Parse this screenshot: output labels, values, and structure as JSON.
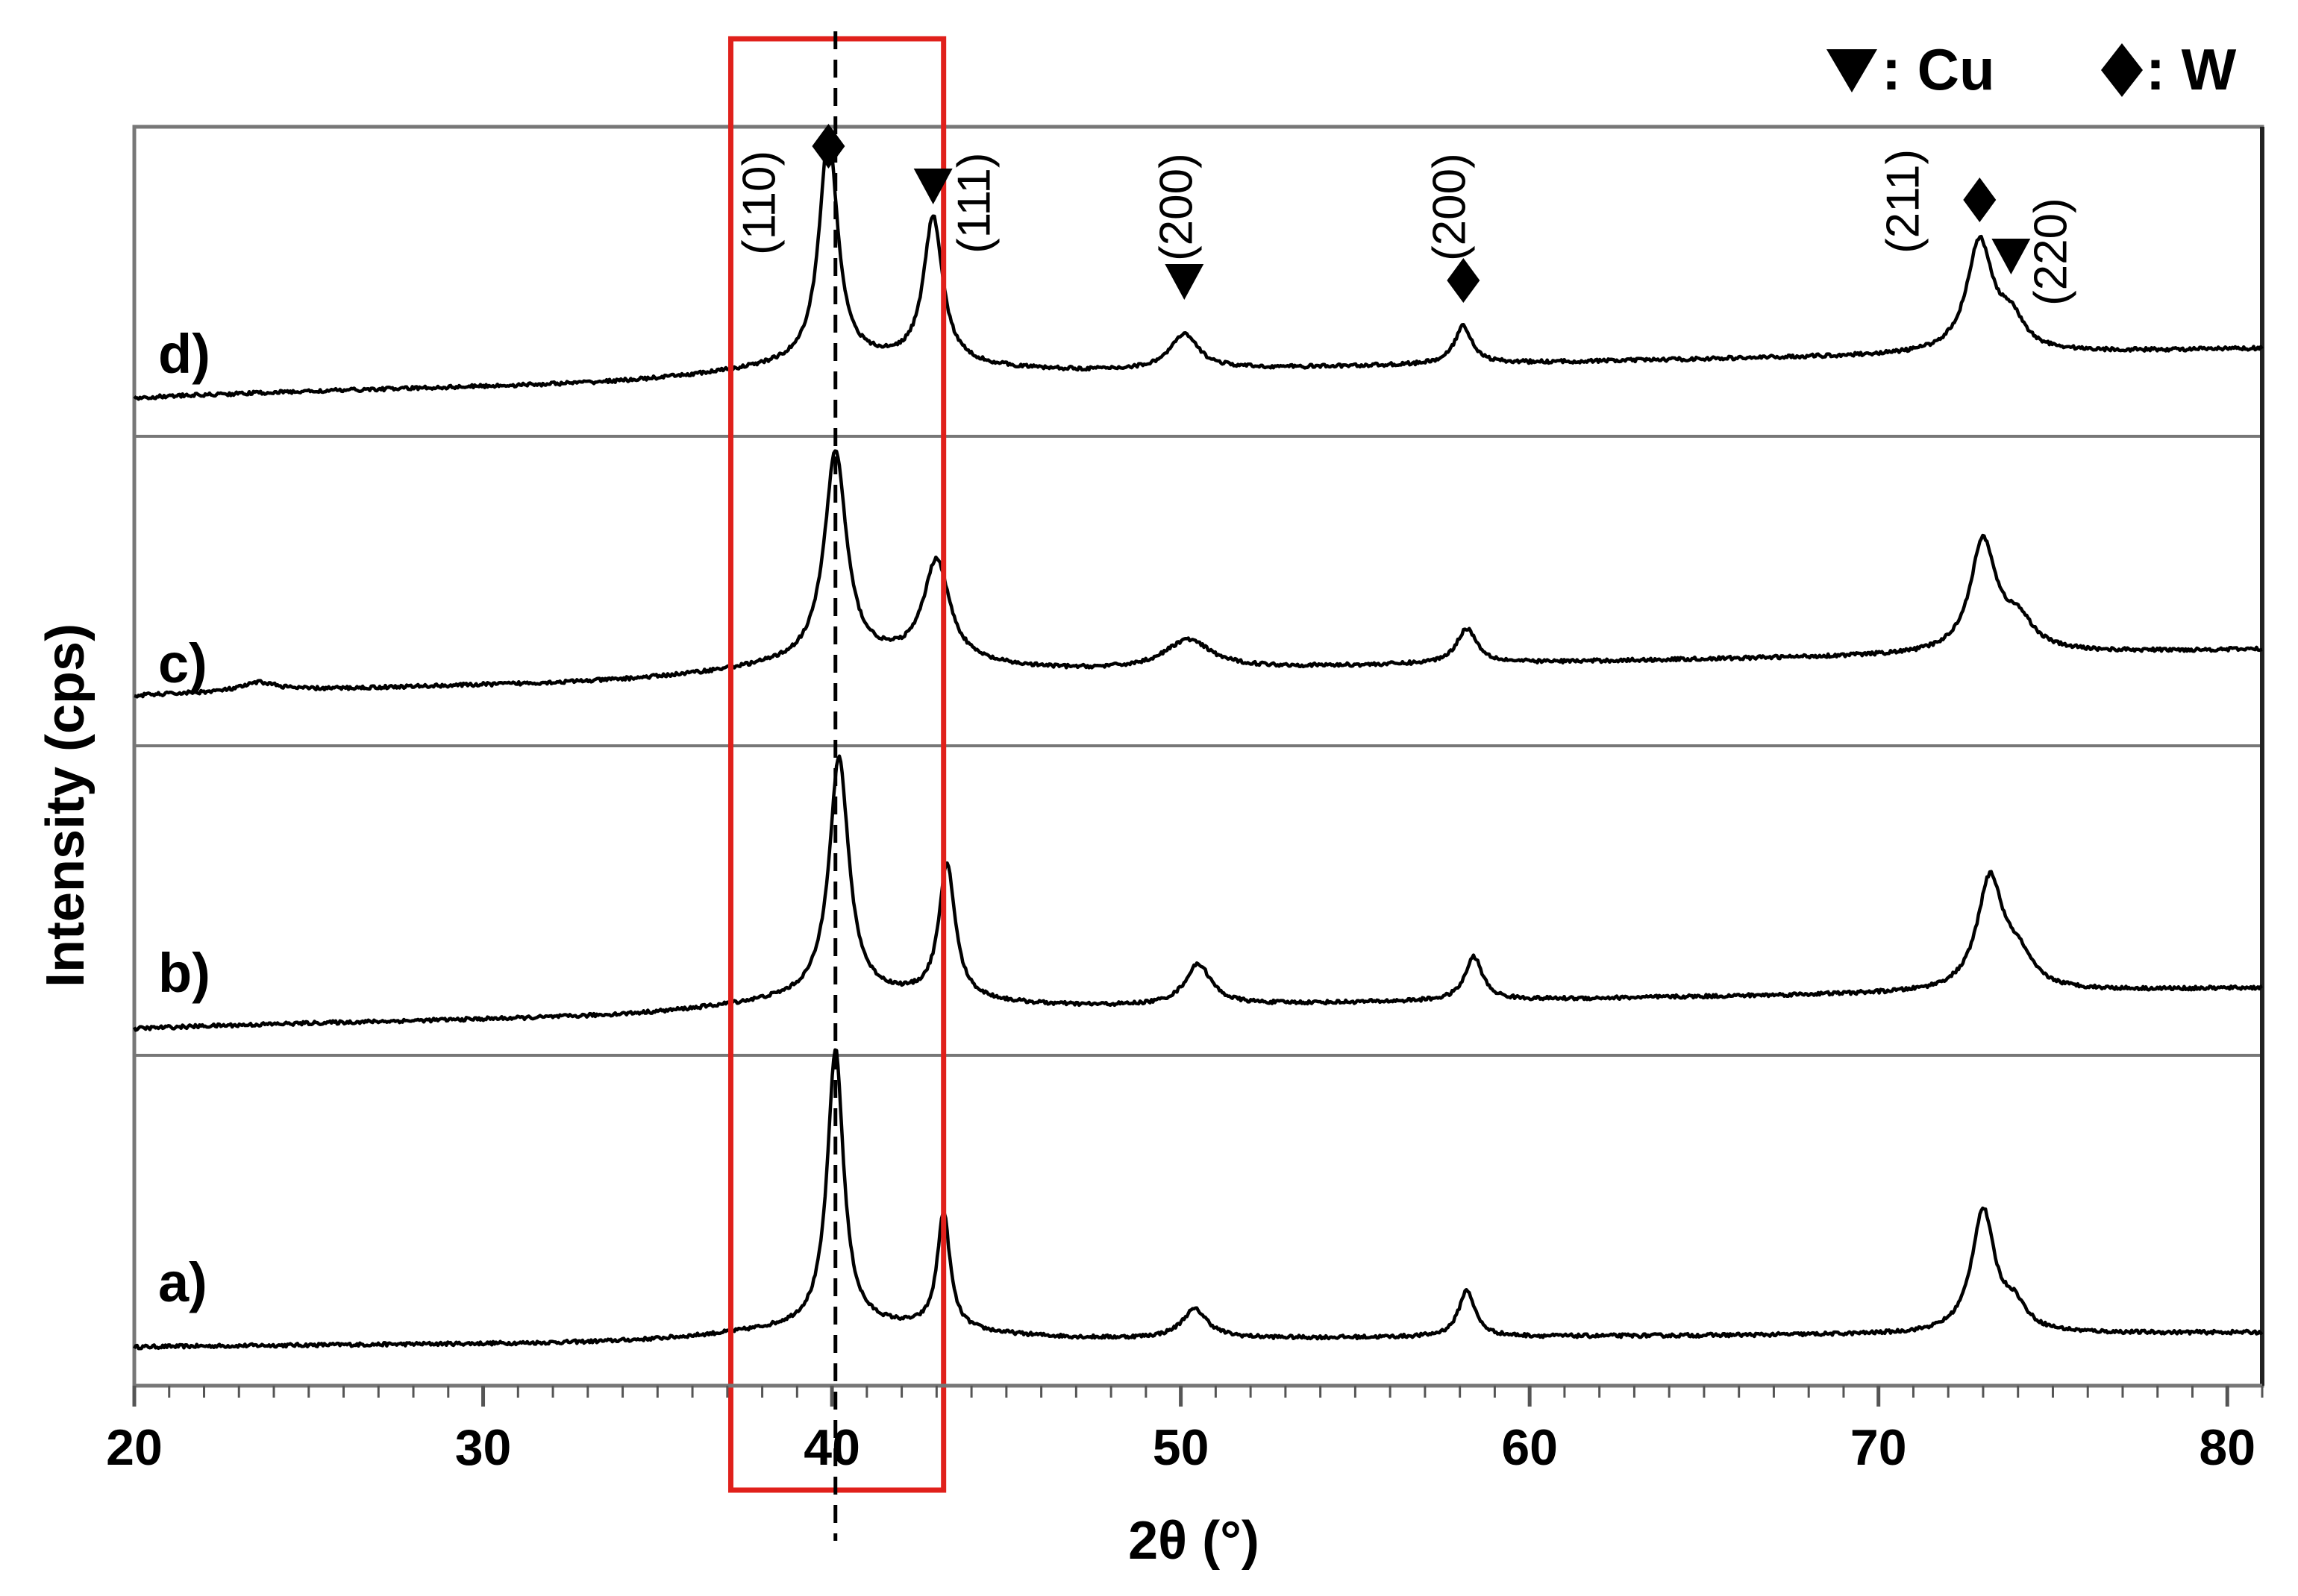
{
  "chart_data": {
    "type": "line",
    "xlabel": "2θ (°)",
    "ylabel": "Intensity (cps)",
    "xlim": [
      20,
      81
    ],
    "x_ticks": [
      20,
      30,
      40,
      50,
      60,
      70,
      80
    ],
    "x_tick_labels": [
      "20",
      "30",
      "40",
      "50",
      "60",
      "70",
      "80"
    ],
    "legend": [
      {
        "symbol": "triangle-down",
        "label": ": Cu"
      },
      {
        "symbol": "diamond",
        "label": ": W"
      }
    ],
    "legend_position": "top-right",
    "highlight_box": {
      "x_range": [
        37.1,
        43.2
      ],
      "color": "#e0201b"
    },
    "reference_line": {
      "x": 40.1,
      "style": "dashed"
    },
    "series": [
      {
        "name": "a)",
        "baseline_start": 0.03,
        "baseline_end": 0.08,
        "peaks": [
          {
            "x": 40.1,
            "height": 0.95,
            "width": 0.28
          },
          {
            "x": 43.2,
            "height": 0.4,
            "width": 0.22
          },
          {
            "x": 50.4,
            "height": 0.1,
            "width": 0.45
          },
          {
            "x": 58.2,
            "height": 0.16,
            "width": 0.28
          },
          {
            "x": 73.0,
            "height": 0.42,
            "width": 0.4
          },
          {
            "x": 73.9,
            "height": 0.08,
            "width": 0.4
          }
        ]
      },
      {
        "name": "b)",
        "baseline_start": 0.06,
        "baseline_end": 0.2,
        "peaks": [
          {
            "x": 40.2,
            "height": 0.82,
            "width": 0.34
          },
          {
            "x": 43.3,
            "height": 0.46,
            "width": 0.28
          },
          {
            "x": 50.5,
            "height": 0.14,
            "width": 0.45
          },
          {
            "x": 58.4,
            "height": 0.15,
            "width": 0.3
          },
          {
            "x": 73.2,
            "height": 0.38,
            "width": 0.45
          },
          {
            "x": 74.0,
            "height": 0.1,
            "width": 0.5
          }
        ]
      },
      {
        "name": "c)",
        "baseline_start": 0.14,
        "baseline_end": 0.3,
        "peaks": [
          {
            "x": 23.6,
            "height": 0.03,
            "width": 0.6
          },
          {
            "x": 40.1,
            "height": 0.72,
            "width": 0.38
          },
          {
            "x": 43.0,
            "height": 0.35,
            "width": 0.45
          },
          {
            "x": 50.2,
            "height": 0.1,
            "width": 0.8
          },
          {
            "x": 58.2,
            "height": 0.12,
            "width": 0.35
          },
          {
            "x": 73.0,
            "height": 0.38,
            "width": 0.45
          },
          {
            "x": 74.0,
            "height": 0.1,
            "width": 0.55
          }
        ]
      },
      {
        "name": "d)",
        "baseline_start": 0.1,
        "baseline_end": 0.27,
        "peaks": [
          {
            "x": 39.9,
            "height": 0.78,
            "width": 0.32
          },
          {
            "x": 42.9,
            "height": 0.5,
            "width": 0.33
          },
          {
            "x": 50.1,
            "height": 0.12,
            "width": 0.5
          },
          {
            "x": 58.1,
            "height": 0.13,
            "width": 0.3
          },
          {
            "x": 72.9,
            "height": 0.38,
            "width": 0.45
          },
          {
            "x": 73.8,
            "height": 0.1,
            "width": 0.45
          }
        ]
      }
    ],
    "peak_annotations": [
      {
        "x": 39.9,
        "label": "(110)",
        "marker": "diamond"
      },
      {
        "x": 42.9,
        "label": "(111)",
        "marker": "triangle-down"
      },
      {
        "x": 50.1,
        "label": "(200)",
        "marker": "triangle-down"
      },
      {
        "x": 58.1,
        "label": "(200)",
        "marker": "diamond"
      },
      {
        "x": 72.9,
        "label": "(211)",
        "marker": "diamond"
      },
      {
        "x": 73.8,
        "label": "(220)",
        "marker": "triangle-down"
      }
    ]
  }
}
